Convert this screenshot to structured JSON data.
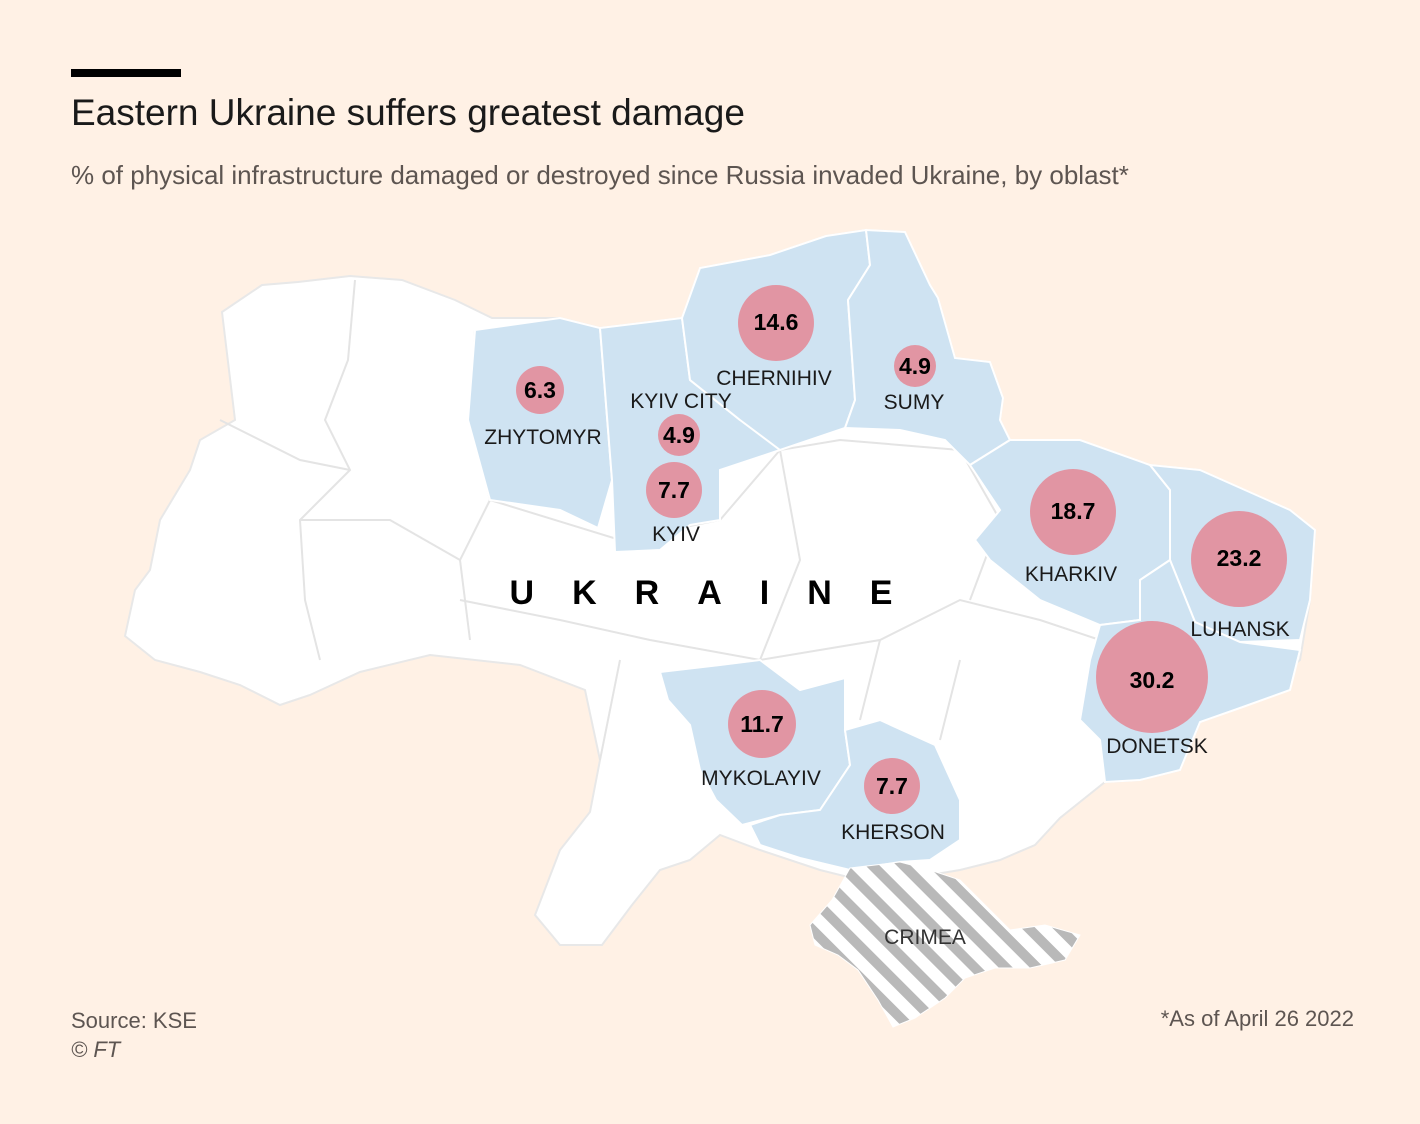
{
  "header": {
    "title": "Eastern Ukraine suffers greatest damage",
    "subtitle": "% of physical infrastructure damaged or destroyed since Russia invaded Ukraine, by oblast*"
  },
  "map": {
    "country_label": "UKRAINE",
    "crimea_label": "CRIMEA",
    "colors": {
      "background": "#fff1e5",
      "land": "#ffffff",
      "highlighted_oblast": "#cfe3f2",
      "bubble": "#e38e9c",
      "crimea_hatch": "#b9b9b9"
    },
    "oblasts": [
      {
        "name": "ZHYTOMYR",
        "value": 6.3,
        "value_label": "6.3"
      },
      {
        "name": "KYIV CITY",
        "value": 4.9,
        "value_label": "4.9"
      },
      {
        "name": "KYIV",
        "value": 7.7,
        "value_label": "7.7"
      },
      {
        "name": "CHERNIHIV",
        "value": 14.6,
        "value_label": "14.6"
      },
      {
        "name": "SUMY",
        "value": 4.9,
        "value_label": "4.9"
      },
      {
        "name": "KHARKIV",
        "value": 18.7,
        "value_label": "18.7"
      },
      {
        "name": "LUHANSK",
        "value": 23.2,
        "value_label": "23.2"
      },
      {
        "name": "DONETSK",
        "value": 30.2,
        "value_label": "30.2"
      },
      {
        "name": "MYKOLAYIV",
        "value": 11.7,
        "value_label": "11.7"
      },
      {
        "name": "KHERSON",
        "value": 7.7,
        "value_label": "7.7"
      }
    ]
  },
  "footer": {
    "source": "Source: KSE",
    "credit": "© FT",
    "note": "*As of April 26 2022"
  }
}
